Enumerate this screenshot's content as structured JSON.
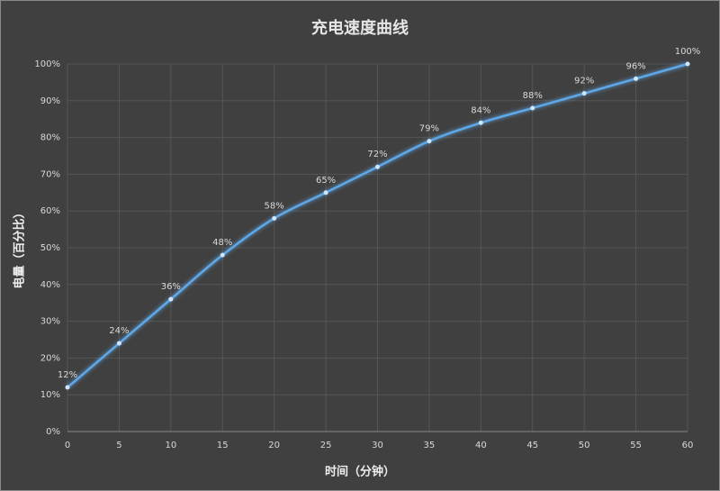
{
  "chart_data": {
    "type": "line",
    "title": "充电速度曲线",
    "x_label": "时间（分钟）",
    "y_label": "电量（百分比）",
    "x": [
      0,
      5,
      10,
      15,
      20,
      25,
      30,
      35,
      40,
      45,
      50,
      55,
      60
    ],
    "values": [
      12,
      24,
      36,
      48,
      58,
      65,
      72,
      79,
      84,
      88,
      92,
      96,
      100
    ],
    "value_labels": [
      "12%",
      "24%",
      "36%",
      "48%",
      "58%",
      "65%",
      "72%",
      "79%",
      "84%",
      "88%",
      "92%",
      "96%",
      "100%"
    ],
    "color": "#5fa8e8",
    "xlim": [
      0,
      60
    ],
    "xticks": [
      0,
      5,
      10,
      15,
      20,
      25,
      30,
      35,
      40,
      45,
      50,
      55,
      60
    ],
    "ylim": [
      0,
      100
    ],
    "yticks": [
      {
        "value": 0,
        "label": "0%"
      },
      {
        "value": 10,
        "label": "10%"
      },
      {
        "value": 20,
        "label": "20%"
      },
      {
        "value": 30,
        "label": "30%"
      },
      {
        "value": 40,
        "label": "40%"
      },
      {
        "value": 50,
        "label": "50%"
      },
      {
        "value": 60,
        "label": "60%"
      },
      {
        "value": 70,
        "label": "70%"
      },
      {
        "value": 80,
        "label": "80%"
      },
      {
        "value": 90,
        "label": "90%"
      },
      {
        "value": 100,
        "label": "100%"
      }
    ],
    "grid": true
  }
}
